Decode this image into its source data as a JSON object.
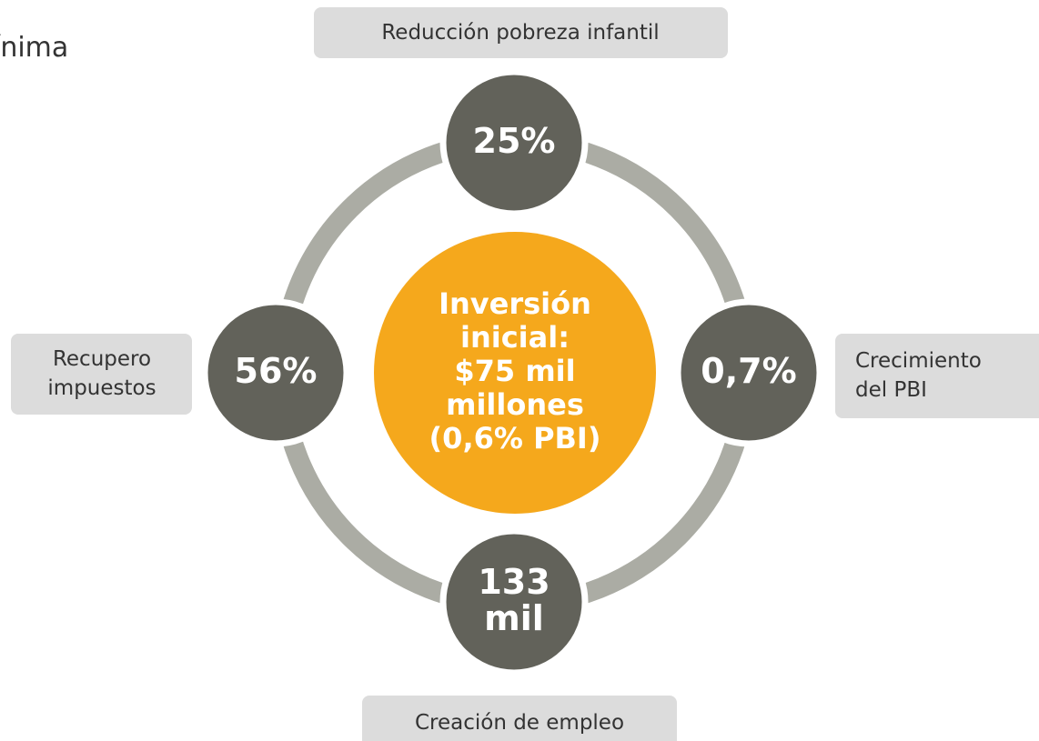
{
  "title_fragment": "ínima",
  "center": {
    "lines": [
      "Inversión",
      "inicial:",
      "$75 mil",
      "millones",
      "(0,6% PBI)"
    ]
  },
  "nodes": [
    {
      "value": [
        "25%"
      ],
      "label": [
        "Reducción pobreza infantil"
      ]
    },
    {
      "value": [
        "0,7%"
      ],
      "label": [
        "Crecimiento",
        "del PBI"
      ]
    },
    {
      "value": [
        "133",
        "mil"
      ],
      "label": [
        "Creación de empleo"
      ]
    },
    {
      "value": [
        "56%"
      ],
      "label": [
        "Recupero",
        "impuestos"
      ]
    }
  ]
}
